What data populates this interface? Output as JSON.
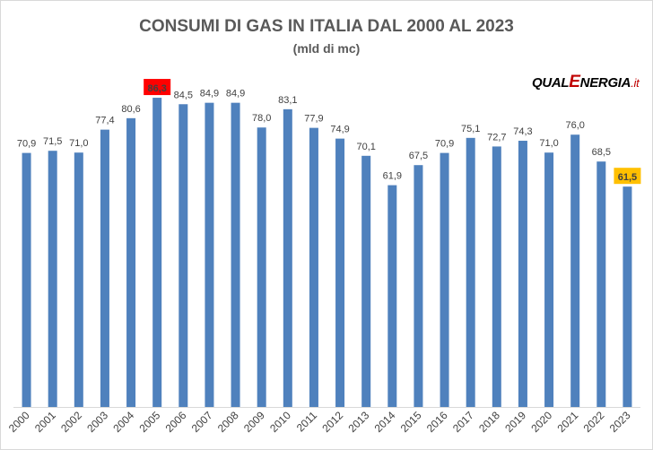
{
  "chart_data": {
    "type": "bar",
    "title": "CONSUMI DI GAS IN ITALIA DAL 2000 AL 2023",
    "subtitle": "(mld di mc)",
    "xlabel": "",
    "ylabel": "",
    "ylim": [
      0,
      90
    ],
    "grid": false,
    "categories": [
      "2000",
      "2001",
      "2002",
      "2003",
      "2004",
      "2005",
      "2006",
      "2007",
      "2008",
      "2009",
      "2010",
      "2011",
      "2012",
      "2013",
      "2014",
      "2015",
      "2016",
      "2017",
      "2018",
      "2019",
      "2020",
      "2021",
      "2022",
      "2023"
    ],
    "values": [
      70.9,
      71.5,
      71.0,
      77.4,
      80.6,
      86.3,
      84.5,
      84.9,
      84.9,
      78.0,
      83.1,
      77.9,
      74.9,
      70.1,
      61.9,
      67.5,
      70.9,
      75.1,
      72.7,
      74.3,
      71.0,
      76.0,
      68.5,
      61.5
    ],
    "data_labels": [
      "70,9",
      "71,5",
      "71,0",
      "77,4",
      "80,6",
      "86,3",
      "84,5",
      "84,9",
      "84,9",
      "78,0",
      "83,1",
      "77,9",
      "74,9",
      "70,1",
      "61,9",
      "67,5",
      "70,9",
      "75,1",
      "72,7",
      "74,3",
      "71,0",
      "76,0",
      "68,5",
      "61,5"
    ],
    "bar_color": "#4f81bd",
    "highlights": [
      {
        "category": "2005",
        "label_bg": "#ff0000",
        "label_color": "#ffffff"
      },
      {
        "category": "2023",
        "label_bg": "#ffc000",
        "label_color": "#404040"
      }
    ]
  },
  "logo": {
    "part1": "QUAL",
    "part2": "E",
    "part3": "NERGIA",
    "part4": ".it"
  }
}
